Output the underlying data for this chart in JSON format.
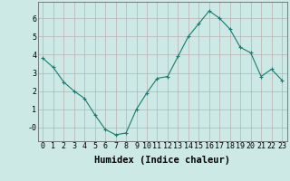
{
  "x": [
    0,
    1,
    2,
    3,
    4,
    5,
    6,
    7,
    8,
    9,
    10,
    11,
    12,
    13,
    14,
    15,
    16,
    17,
    18,
    19,
    20,
    21,
    22,
    23
  ],
  "y": [
    3.8,
    3.3,
    2.5,
    2.0,
    1.6,
    0.7,
    -0.1,
    -0.4,
    -0.3,
    1.0,
    1.9,
    2.7,
    2.8,
    3.9,
    5.0,
    5.7,
    6.4,
    6.0,
    5.4,
    4.4,
    4.1,
    2.8,
    3.2,
    2.6
  ],
  "line_color": "#1a7a6e",
  "marker": "+",
  "marker_size": 3,
  "marker_linewidth": 0.8,
  "bg_color": "#cce9e5",
  "grid_color": "#b8b0b0",
  "xlabel": "Humidex (Indice chaleur)",
  "xlabel_fontsize": 7.5,
  "tick_fontsize": 6,
  "xlim": [
    -0.5,
    23.5
  ],
  "ylim": [
    -0.75,
    6.9
  ],
  "yticks": [
    0,
    1,
    2,
    3,
    4,
    5,
    6
  ],
  "ytick_labels": [
    "-0",
    "1",
    "2",
    "3",
    "4",
    "5",
    "6"
  ],
  "xticks": [
    0,
    1,
    2,
    3,
    4,
    5,
    6,
    7,
    8,
    9,
    10,
    11,
    12,
    13,
    14,
    15,
    16,
    17,
    18,
    19,
    20,
    21,
    22,
    23
  ]
}
